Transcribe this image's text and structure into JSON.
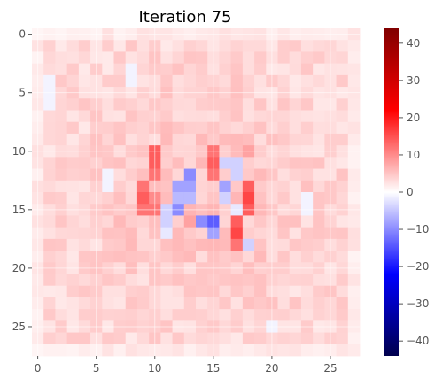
{
  "chart_data": {
    "type": "heatmap",
    "title": "Iteration 75",
    "xlabel": "",
    "ylabel": "",
    "rows": 28,
    "cols": 28,
    "xlim": [
      -0.5,
      27.5
    ],
    "ylim": [
      27.5,
      -0.5
    ],
    "x_ticks": [
      0,
      5,
      10,
      15,
      20,
      25
    ],
    "y_ticks": [
      0,
      5,
      10,
      15,
      20,
      25
    ],
    "grid": true,
    "colormap": "seismic",
    "colorbar": {
      "min": -44,
      "max": 44,
      "ticks": [
        40,
        30,
        20,
        10,
        0,
        -10,
        -20,
        -30,
        -40
      ],
      "placement": "right"
    },
    "values_description_pattern": {
      "features": [
        {
          "row": 10,
          "col": 10,
          "v": 14
        },
        {
          "row": 11,
          "col": 10,
          "v": 14
        },
        {
          "row": 12,
          "col": 10,
          "v": 12
        },
        {
          "row": 10,
          "col": 15,
          "v": 12
        },
        {
          "row": 11,
          "col": 15,
          "v": 14
        },
        {
          "row": 12,
          "col": 15,
          "v": 12
        },
        {
          "row": 10,
          "col": 18,
          "v": 8
        },
        {
          "row": 13,
          "col": 9,
          "v": 12
        },
        {
          "row": 14,
          "col": 9,
          "v": 14
        },
        {
          "row": 15,
          "col": 9,
          "v": 12
        },
        {
          "row": 14,
          "col": 10,
          "v": 10
        },
        {
          "row": 15,
          "col": 10,
          "v": 12
        },
        {
          "row": 13,
          "col": 18,
          "v": 14
        },
        {
          "row": 14,
          "col": 18,
          "v": 16
        },
        {
          "row": 15,
          "col": 18,
          "v": 14
        },
        {
          "row": 16,
          "col": 17,
          "v": 14
        },
        {
          "row": 17,
          "col": 17,
          "v": 16
        },
        {
          "row": 18,
          "col": 17,
          "v": 12
        },
        {
          "row": 12,
          "col": 13,
          "v": -10
        },
        {
          "row": 13,
          "col": 13,
          "v": -8
        },
        {
          "row": 13,
          "col": 12,
          "v": -8
        },
        {
          "row": 14,
          "col": 12,
          "v": -6
        },
        {
          "row": 15,
          "col": 12,
          "v": -10
        },
        {
          "row": 14,
          "col": 13,
          "v": -6
        },
        {
          "row": 11,
          "col": 16,
          "v": -4
        },
        {
          "row": 11,
          "col": 17,
          "v": -4
        },
        {
          "row": 12,
          "col": 17,
          "v": -4
        },
        {
          "row": 13,
          "col": 16,
          "v": -8
        },
        {
          "row": 14,
          "col": 16,
          "v": -4
        },
        {
          "row": 16,
          "col": 15,
          "v": -14
        },
        {
          "row": 16,
          "col": 14,
          "v": -10
        },
        {
          "row": 17,
          "col": 15,
          "v": -8
        },
        {
          "row": 15,
          "col": 11,
          "v": -4
        },
        {
          "row": 16,
          "col": 11,
          "v": -4
        },
        {
          "row": 17,
          "col": 11,
          "v": -2
        },
        {
          "row": 18,
          "col": 18,
          "v": -4
        },
        {
          "row": 15,
          "col": 17,
          "v": -2
        },
        {
          "row": 9,
          "col": 11,
          "v": 6
        },
        {
          "row": 9,
          "col": 14,
          "v": 6
        },
        {
          "row": 9,
          "col": 17,
          "v": 6
        },
        {
          "row": 12,
          "col": 19,
          "v": 6
        },
        {
          "row": 16,
          "col": 13,
          "v": 8
        },
        {
          "row": 17,
          "col": 12,
          "v": 6
        },
        {
          "row": 18,
          "col": 12,
          "v": 6
        },
        {
          "row": 18,
          "col": 14,
          "v": 6
        },
        {
          "row": 19,
          "col": 13,
          "v": 6
        },
        {
          "row": 19,
          "col": 19,
          "v": 6
        },
        {
          "row": 16,
          "col": 7,
          "v": 6
        },
        {
          "row": 18,
          "col": 8,
          "v": 6
        },
        {
          "row": 8,
          "col": 12,
          "v": 5
        },
        {
          "row": 8,
          "col": 15,
          "v": 5
        },
        {
          "row": 20,
          "col": 14,
          "v": 5
        },
        {
          "row": 21,
          "col": 10,
          "v": 5
        },
        {
          "row": 21,
          "col": 14,
          "v": 5
        },
        {
          "row": 22,
          "col": 15,
          "v": 5
        },
        {
          "row": 4,
          "col": 1,
          "v": -1
        },
        {
          "row": 5,
          "col": 1,
          "v": -1
        },
        {
          "row": 6,
          "col": 1,
          "v": -1
        },
        {
          "row": 3,
          "col": 8,
          "v": -1
        },
        {
          "row": 4,
          "col": 8,
          "v": -1
        },
        {
          "row": 12,
          "col": 6,
          "v": -1
        },
        {
          "row": 13,
          "col": 6,
          "v": -1
        },
        {
          "row": 14,
          "col": 23,
          "v": -1
        },
        {
          "row": 15,
          "col": 23,
          "v": -1
        },
        {
          "row": 25,
          "col": 20,
          "v": -1
        }
      ]
    }
  }
}
